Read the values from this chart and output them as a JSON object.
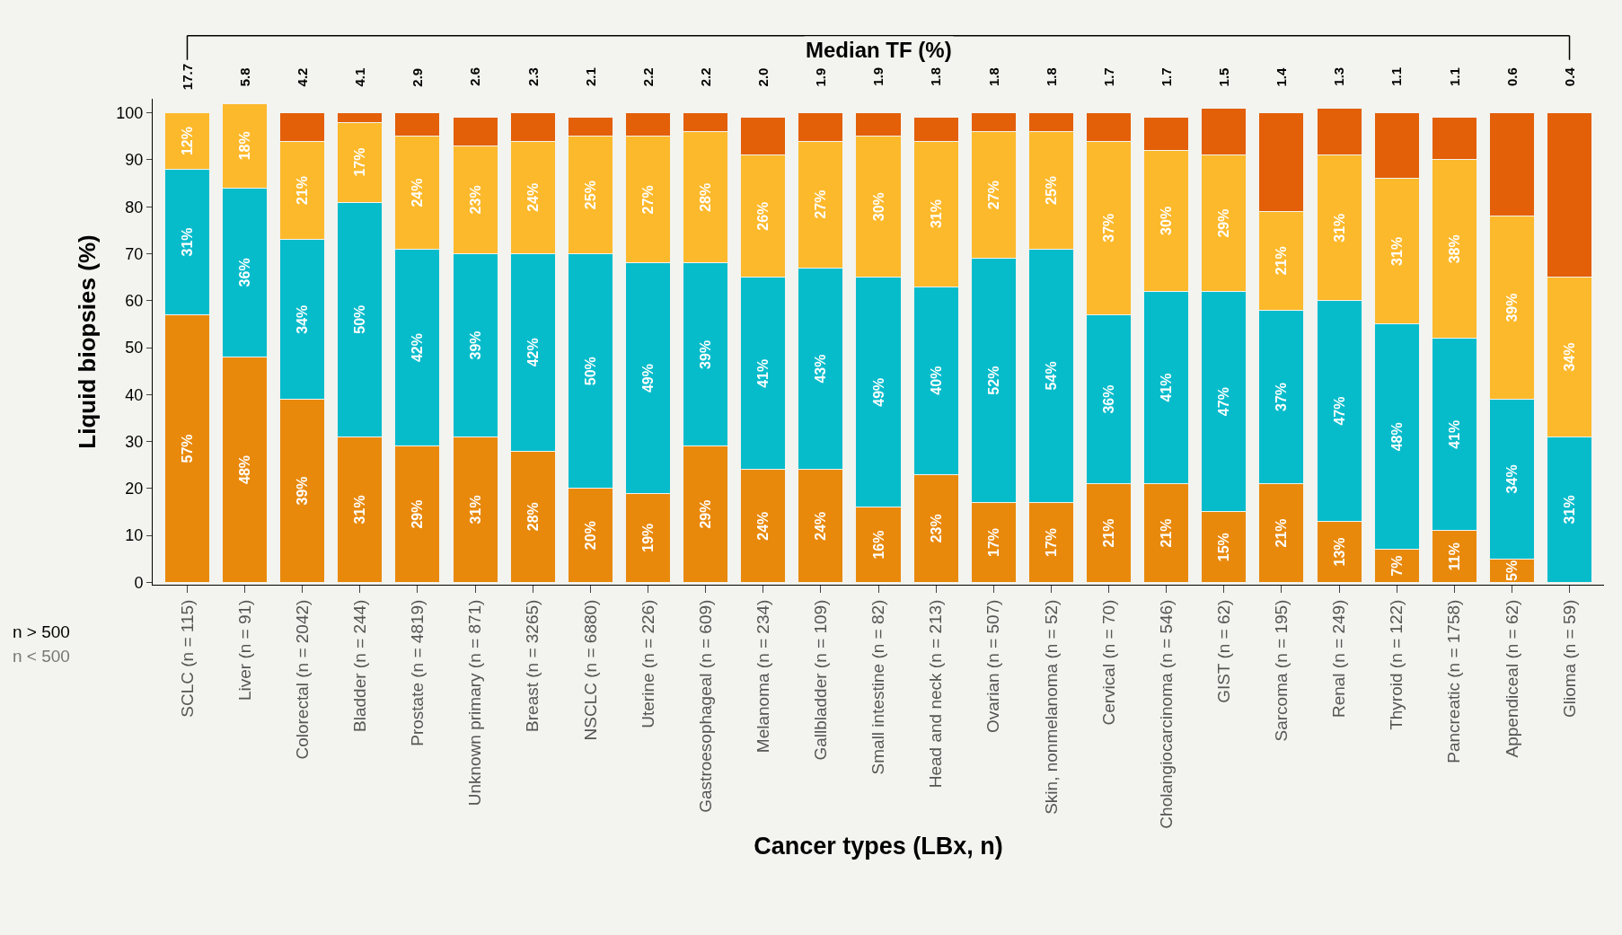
{
  "chart_data": {
    "type": "bar",
    "stacked": true,
    "xlabel": "Cancer types (LBx, n)",
    "ylabel": "Liquid biopsies (%)",
    "categories": [
      "SCLC (n = 115)",
      "Liver (n = 91)",
      "Colorectal (n = 2042)",
      "Bladder (n = 244)",
      "Prostate (n = 4819)",
      "Unknown primary (n = 871)",
      "Breast (n = 3265)",
      "NSCLC (n = 6880)",
      "Uterine (n = 226)",
      "Gastroesophageal (n = 609)",
      "Melanoma (n = 234)",
      "Gallbladder (n = 109)",
      "Small intestine (n = 82)",
      "Head and neck (n = 213)",
      "Ovarian (n = 507)",
      "Skin, nonmelanoma (n = 52)",
      "Cervical (n = 70)",
      "Cholangiocarcinoma (n = 546)",
      "GIST (n = 62)",
      "Sarcoma (n = 195)",
      "Renal (n = 249)",
      "Thyroid (n = 122)",
      "Pancreatic (n = 1758)",
      "Appendiceal (n = 62)",
      "Glioma (n = 59)"
    ],
    "series": [
      {
        "color": "#e8890c",
        "values": [
          57,
          48,
          39,
          31,
          29,
          31,
          28,
          20,
          19,
          29,
          24,
          24,
          16,
          23,
          17,
          17,
          21,
          21,
          15,
          21,
          13,
          7,
          11,
          5,
          null
        ],
        "value_labels": [
          "57%",
          "48%",
          "39%",
          "31%",
          "29%",
          "31%",
          "28%",
          "20%",
          "19%",
          "29%",
          "24%",
          "24%",
          "16%",
          "23%",
          "17%",
          "17%",
          "21%",
          "21%",
          "15%",
          "21%",
          "13%",
          "7%",
          "11%",
          "5%",
          null
        ]
      },
      {
        "color": "#06bccb",
        "values": [
          31,
          36,
          34,
          50,
          42,
          39,
          42,
          50,
          49,
          39,
          41,
          43,
          49,
          40,
          52,
          54,
          36,
          41,
          47,
          37,
          47,
          48,
          41,
          34,
          31
        ],
        "value_labels": [
          "31%",
          "36%",
          "34%",
          "50%",
          "42%",
          "39%",
          "42%",
          "50%",
          "49%",
          "39%",
          "41%",
          "43%",
          "49%",
          "40%",
          "52%",
          "54%",
          "36%",
          "41%",
          "47%",
          "37%",
          "47%",
          "48%",
          "41%",
          "34%",
          "31%"
        ]
      },
      {
        "color": "#fdb92c",
        "values": [
          12,
          18,
          21,
          17,
          24,
          23,
          24,
          25,
          27,
          28,
          26,
          27,
          30,
          31,
          27,
          25,
          37,
          30,
          29,
          21,
          31,
          31,
          38,
          39,
          34
        ],
        "value_labels": [
          "12%",
          "18%",
          "21%",
          "17%",
          "24%",
          "23%",
          "24%",
          "25%",
          "27%",
          "28%",
          "26%",
          "27%",
          "30%",
          "31%",
          "27%",
          "25%",
          "37%",
          "30%",
          "29%",
          "21%",
          "31%",
          "31%",
          "38%",
          "39%",
          "34%"
        ]
      },
      {
        "color": "#e35f08",
        "values": [
          null,
          null,
          6,
          2,
          5,
          6,
          6,
          4,
          5,
          4,
          8,
          6,
          5,
          5,
          4,
          4,
          6,
          7,
          10,
          21,
          10,
          14,
          9,
          22,
          35
        ]
      }
    ],
    "annotations": [
      "Median TF (%)",
      "n > 500",
      "n < 500",
      "17.7",
      "5.8",
      "4.2",
      "4.1",
      "2.9",
      "2.6",
      "2.3",
      "2.1",
      "2.2",
      "2.2",
      "2.0",
      "1.9",
      "1.9",
      "1.8",
      "1.8",
      "1.8",
      "1.7",
      "1.7",
      "1.5",
      "1.4",
      "1.3",
      "1.1",
      "1.1",
      "0.6",
      "0.4"
    ],
    "ylim": [
      -0.5,
      103
    ],
    "yticks": [
      0,
      10,
      20,
      30,
      40,
      50,
      60,
      70,
      80,
      90,
      100
    ],
    "grid": false
  }
}
